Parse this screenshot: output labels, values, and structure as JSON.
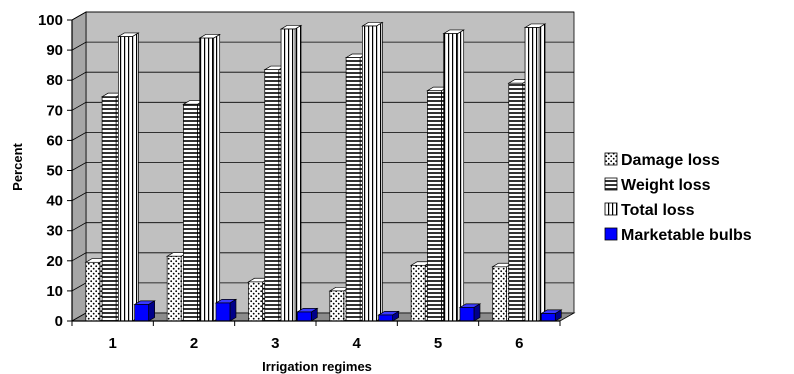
{
  "chart_data": {
    "type": "bar",
    "categories": [
      "1",
      "2",
      "3",
      "4",
      "5",
      "6"
    ],
    "series": [
      {
        "name": "Damage loss",
        "values": [
          19.5,
          21.5,
          13,
          10,
          18.5,
          18
        ],
        "pattern": "dots",
        "color": "#ffffff"
      },
      {
        "name": "Weight loss",
        "values": [
          74.5,
          72,
          83.5,
          87.5,
          76.5,
          79
        ],
        "pattern": "horizontal-stripes",
        "color": "#ffffff"
      },
      {
        "name": "Total loss",
        "values": [
          94.5,
          94,
          97,
          98,
          95.5,
          97.5
        ],
        "pattern": "vertical-stripes",
        "color": "#ffffff"
      },
      {
        "name": "Marketable bulbs",
        "values": [
          5.5,
          6,
          3,
          2,
          4.5,
          2.5
        ],
        "pattern": "solid",
        "color": "#0000ff"
      }
    ],
    "xlabel": "Irrigation regimes",
    "ylabel": "Percent",
    "ylim": [
      0,
      100
    ],
    "yticks": [
      "0",
      "10",
      "20",
      "30",
      "40",
      "50",
      "60",
      "70",
      "80",
      "90",
      "100"
    ],
    "grid": true,
    "legend_position": "right",
    "wall_color": "#c0c0c0"
  }
}
